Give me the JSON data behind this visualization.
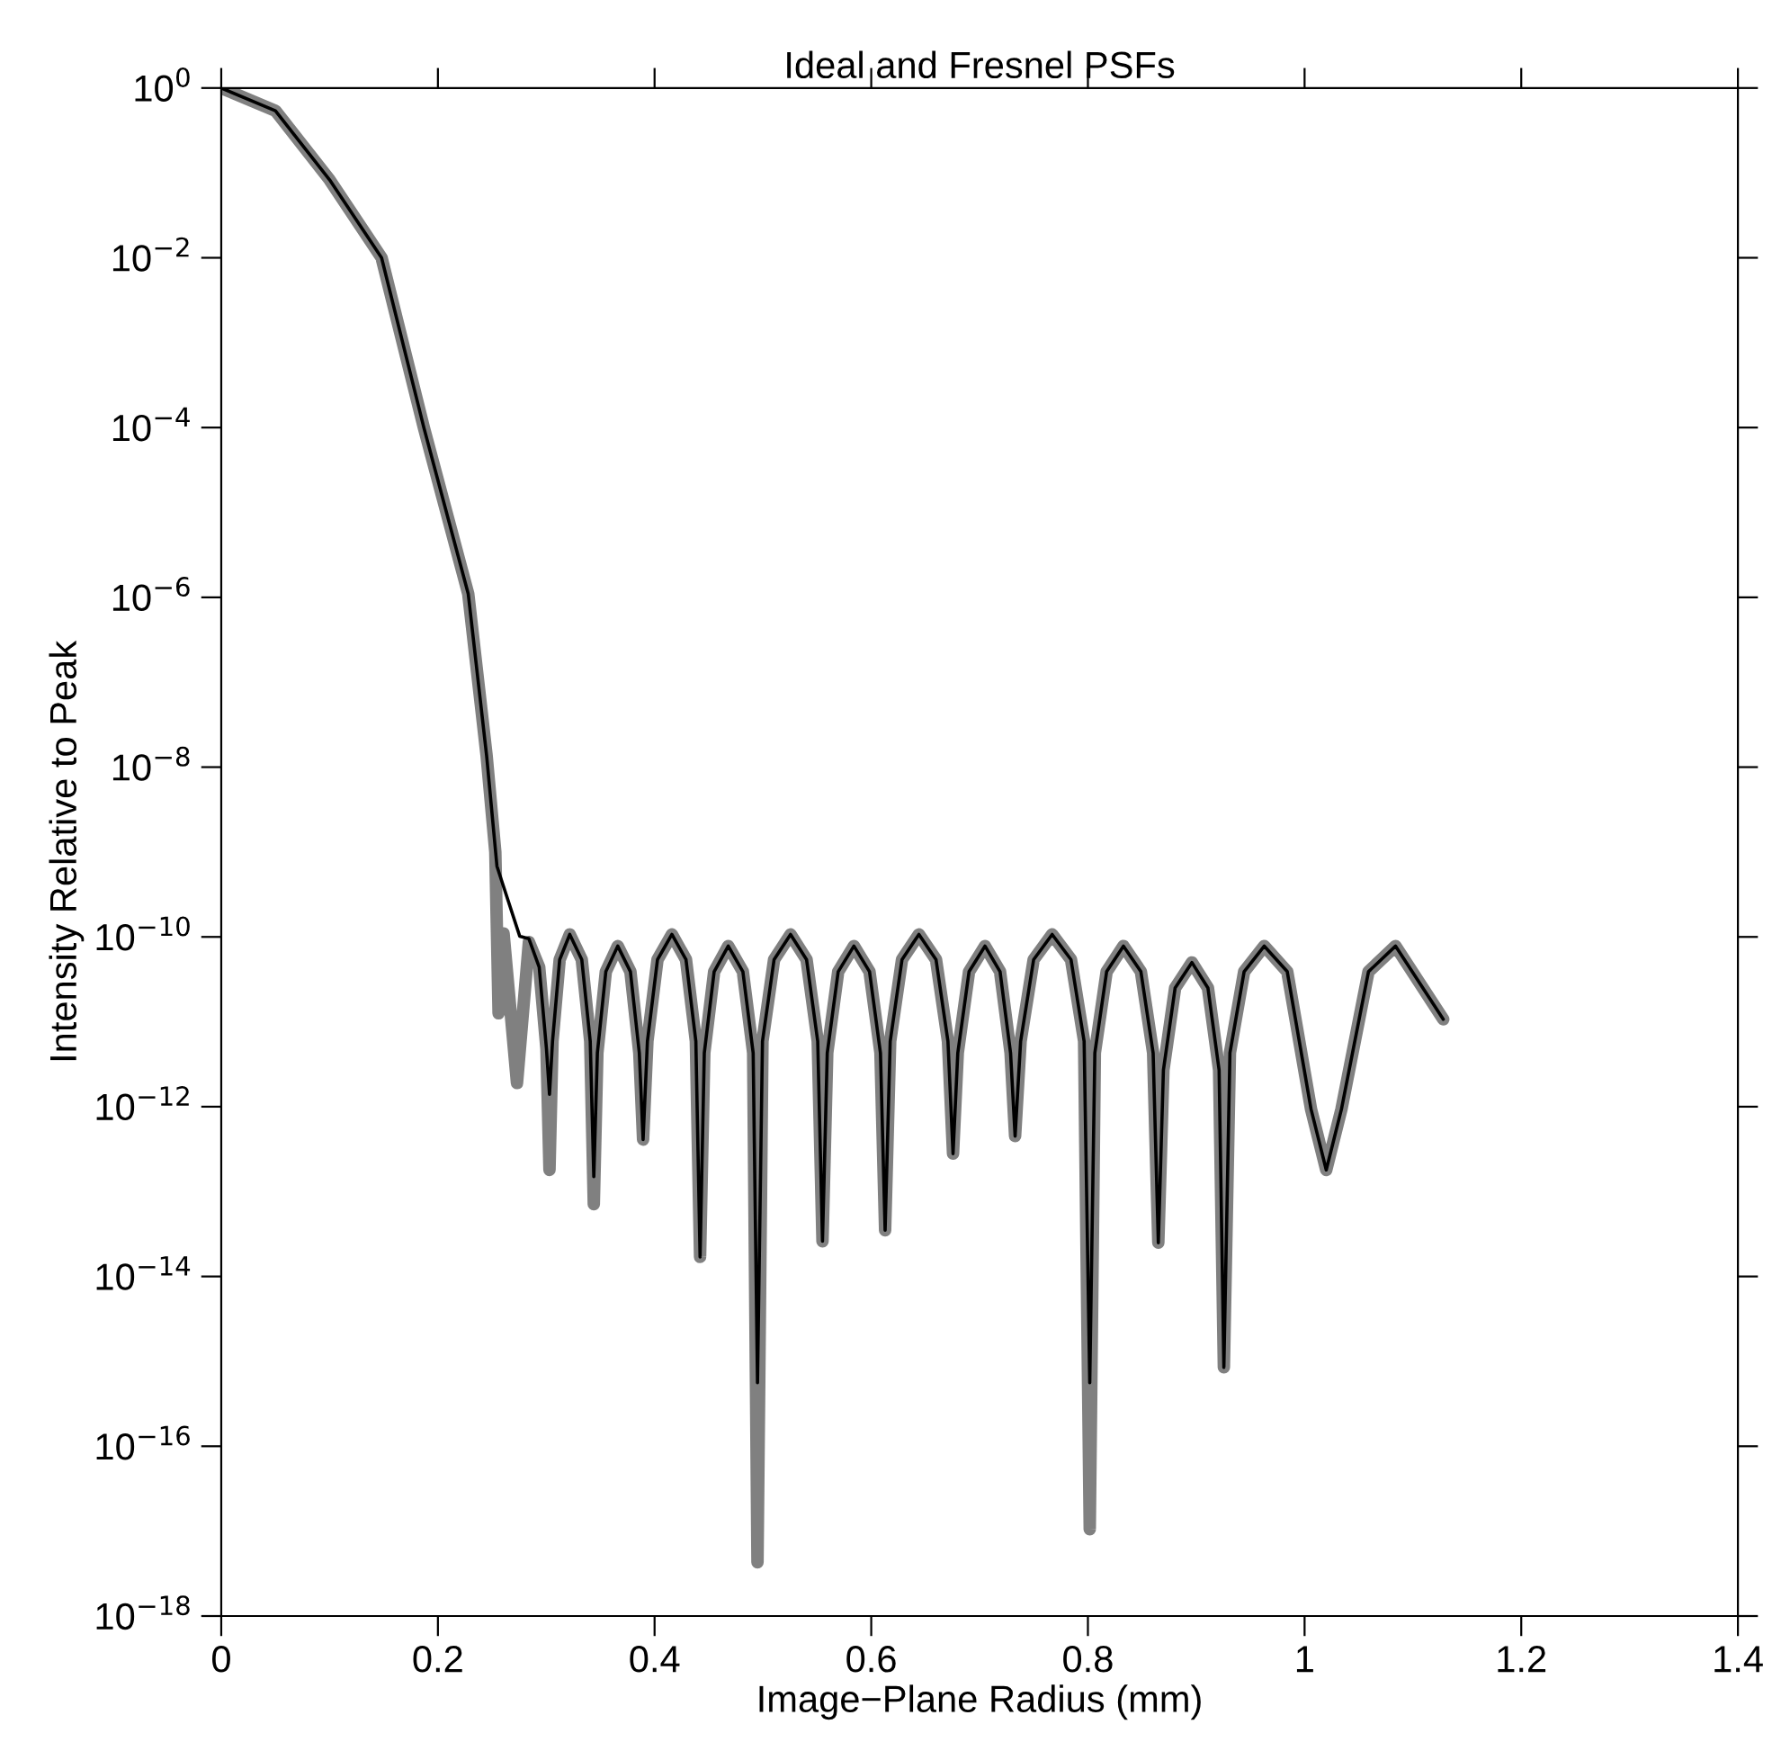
{
  "chart_data": {
    "type": "line",
    "title": "Ideal and Fresnel PSFs",
    "xlabel": "Image−Plane Radius (mm)",
    "ylabel": "Intensity Relative to Peak",
    "log": "y",
    "grid": false,
    "xlim": [
      0,
      1.4
    ],
    "xticks": [
      0,
      0.2,
      0.4,
      0.6,
      0.8,
      1,
      1.2,
      1.4
    ],
    "ylim": [
      1e-18,
      1
    ],
    "yticks": [
      {
        "value": 1,
        "label": "10$^{0}$"
      },
      {
        "value": 0.01,
        "label": "10$^{−2}$"
      },
      {
        "value": 0.0001,
        "label": "10$^{−4}$"
      },
      {
        "value": 1e-06,
        "label": "10$^{−6}$"
      },
      {
        "value": 1e-08,
        "label": "10$^{−8}$"
      },
      {
        "value": 1e-10,
        "label": "10$^{−10}$"
      },
      {
        "value": 1e-12,
        "label": "10$^{−12}$"
      },
      {
        "value": 1e-14,
        "label": "10$^{−14}$"
      },
      {
        "value": 1e-16,
        "label": "10$^{−16}$"
      },
      {
        "value": 1e-18,
        "label": "10$^{−18}$"
      }
    ],
    "series": [
      {
        "color": "#808080",
        "x": [
          0,
          0.05,
          0.1,
          0.148,
          0.187,
          0.228,
          0.245,
          0.253,
          0.256,
          0.2606,
          0.273,
          0.284,
          0.2935,
          0.3002,
          0.303,
          0.3058,
          0.3124,
          0.3217,
          0.3328,
          0.3406,
          0.3439,
          0.3472,
          0.355,
          0.366,
          0.3777,
          0.3859,
          0.3894,
          0.3934,
          0.4027,
          0.416,
          0.429,
          0.4381,
          0.442,
          0.4459,
          0.455,
          0.468,
          0.4815,
          0.491,
          0.495,
          0.4996,
          0.5103,
          0.5255,
          0.5403,
          0.5506,
          0.555,
          0.5594,
          0.5695,
          0.584,
          0.5984,
          0.6085,
          0.6128,
          0.6175,
          0.6284,
          0.644,
          0.6598,
          0.6708,
          0.6755,
          0.6799,
          0.6903,
          0.705,
          0.7189,
          0.7286,
          0.7328,
          0.7379,
          0.7499,
          0.767,
          0.7844,
          0.7965,
          0.8017,
          0.8064,
          0.8173,
          0.8328,
          0.8489,
          0.8602,
          0.865,
          0.8697,
          0.8805,
          0.896,
          0.9108,
          0.9211,
          0.9255,
          0.9311,
          0.9442,
          0.9628,
          0.984,
          1.006,
          1.02,
          1.034,
          1.059,
          1.084,
          1.128
        ],
        "values": [
          1,
          0.54,
          0.083,
          0.01,
          0.0001,
          1.1e-06,
          1.35e-08,
          1e-09,
          1.26e-11,
          1.1e-10,
          1.9e-12,
          8.7e-11,
          4.4e-11,
          4.8e-12,
          1.8e-13,
          5.9e-12,
          5.4e-11,
          1.07e-10,
          5.4e-11,
          5.9e-12,
          7.1e-14,
          4.3e-12,
          3.9e-11,
          7.8e-11,
          3.9e-11,
          4.3e-12,
          4.1e-13,
          5.9e-12,
          5.4e-11,
          1.07e-10,
          5.4e-11,
          5.9e-12,
          1.7e-14,
          4.3e-12,
          3.9e-11,
          7.8e-11,
          3.9e-11,
          4.3e-12,
          4.3e-18,
          5.9e-12,
          5.4e-11,
          1.07e-10,
          5.4e-11,
          5.9e-12,
          2.6e-14,
          4.3e-12,
          3.9e-11,
          7.8e-11,
          3.9e-11,
          4.3e-12,
          3.5e-14,
          5.9e-12,
          5.4e-11,
          1.07e-10,
          5.4e-11,
          5.9e-12,
          2.8e-13,
          4.3e-12,
          3.9e-11,
          7.8e-11,
          3.9e-11,
          4.3e-12,
          4.5e-13,
          5.9e-12,
          5.4e-11,
          1.07e-10,
          5.4e-11,
          5.9e-12,
          1.05e-17,
          4.3e-12,
          3.9e-11,
          7.8e-11,
          3.9e-11,
          4.3e-12,
          2.5e-14,
          2.7e-12,
          2.5e-11,
          5e-11,
          2.5e-11,
          2.7e-12,
          8.5e-16,
          4.3e-12,
          3.9e-11,
          7.8e-11,
          3.9e-11,
          9.3e-13,
          1.8e-13,
          9.3e-13,
          3.9e-11,
          7.8e-11,
          1.07e-11
        ]
      },
      {
        "color": "#000000",
        "x": [
          0,
          0.05,
          0.1,
          0.148,
          0.187,
          0.228,
          0.245,
          0.2545,
          0.2755,
          0.284,
          0.2935,
          0.3002,
          0.303,
          0.3058,
          0.3124,
          0.3217,
          0.3328,
          0.3406,
          0.3439,
          0.3472,
          0.355,
          0.366,
          0.3777,
          0.3859,
          0.3894,
          0.3934,
          0.4027,
          0.416,
          0.429,
          0.4381,
          0.442,
          0.4459,
          0.455,
          0.468,
          0.4815,
          0.491,
          0.495,
          0.4996,
          0.5103,
          0.5255,
          0.5403,
          0.5506,
          0.555,
          0.5594,
          0.5695,
          0.584,
          0.5984,
          0.6085,
          0.6128,
          0.6175,
          0.6284,
          0.644,
          0.6598,
          0.6708,
          0.6755,
          0.6799,
          0.6903,
          0.705,
          0.7189,
          0.7286,
          0.7328,
          0.7379,
          0.7499,
          0.767,
          0.7844,
          0.7965,
          0.8017,
          0.8064,
          0.8173,
          0.8328,
          0.8489,
          0.8602,
          0.865,
          0.8697,
          0.8805,
          0.896,
          0.9108,
          0.9211,
          0.9255,
          0.9311,
          0.9442,
          0.9628,
          0.984,
          1.006,
          1.02,
          1.034,
          1.059,
          1.084,
          1.128
        ],
        "values": [
          1,
          0.54,
          0.083,
          0.01,
          0.0001,
          1.1e-06,
          1.35e-08,
          6.8e-10,
          1.02e-10,
          9.5e-11,
          4.4e-11,
          4.8e-12,
          1.4e-12,
          5.9e-12,
          5.4e-11,
          1.07e-10,
          5.4e-11,
          5.9e-12,
          1.5e-13,
          4.3e-12,
          3.9e-11,
          7.8e-11,
          3.9e-11,
          4.3e-12,
          4.1e-13,
          5.9e-12,
          5.4e-11,
          1.07e-10,
          5.4e-11,
          5.9e-12,
          1.7e-14,
          4.3e-12,
          3.9e-11,
          7.8e-11,
          3.9e-11,
          4.3e-12,
          5.6e-16,
          5.9e-12,
          5.4e-11,
          1.07e-10,
          5.4e-11,
          5.9e-12,
          2.6e-14,
          4.3e-12,
          3.9e-11,
          7.8e-11,
          3.9e-11,
          4.3e-12,
          3.5e-14,
          5.9e-12,
          5.4e-11,
          1.07e-10,
          5.4e-11,
          5.9e-12,
          2.8e-13,
          4.3e-12,
          3.9e-11,
          7.8e-11,
          3.9e-11,
          4.3e-12,
          4.5e-13,
          5.9e-12,
          5.4e-11,
          1.07e-10,
          5.4e-11,
          5.9e-12,
          5.6e-16,
          4.3e-12,
          3.9e-11,
          7.8e-11,
          3.9e-11,
          4.3e-12,
          2.5e-14,
          2.7e-12,
          2.5e-11,
          5e-11,
          2.5e-11,
          2.7e-12,
          8.5e-16,
          4.3e-12,
          3.9e-11,
          7.8e-11,
          3.9e-11,
          9.3e-13,
          1.8e-13,
          9.3e-13,
          3.9e-11,
          7.8e-11,
          1.07e-11
        ]
      }
    ]
  }
}
